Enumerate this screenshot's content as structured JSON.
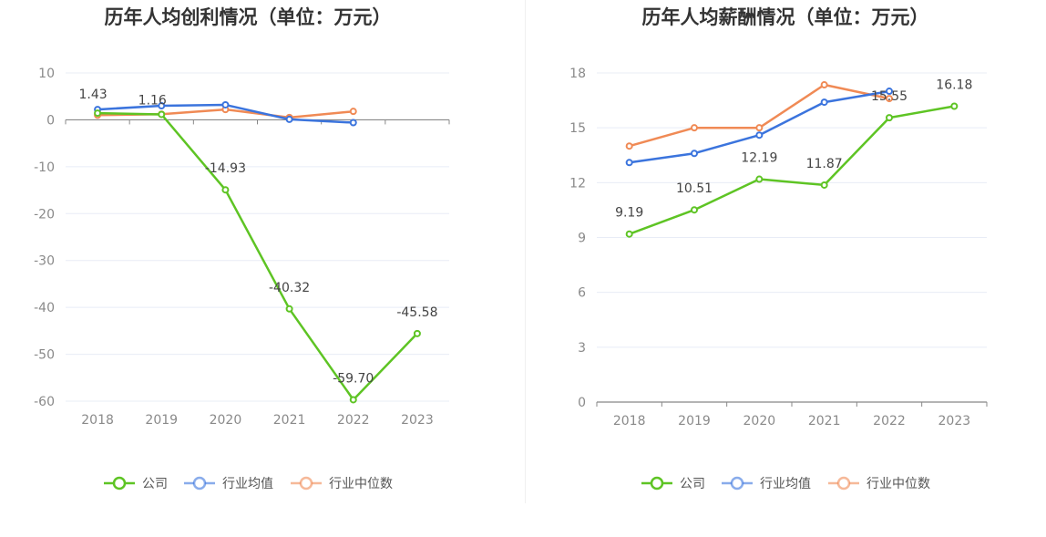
{
  "colors": {
    "company": "#5ec424",
    "industry_avg": "#3b74dd",
    "industry_median": "#f08a55",
    "grid": "#e8ecf6",
    "axis": "#888888"
  },
  "chart_data": [
    {
      "type": "line",
      "title": "历年人均创利情况（单位：万元）",
      "categories": [
        "2018",
        "2019",
        "2020",
        "2021",
        "2022",
        "2023"
      ],
      "ylim": [
        -60,
        10
      ],
      "yticks": [
        10,
        0,
        -10,
        -20,
        -30,
        -40,
        -50,
        -60
      ],
      "grid": true,
      "legend_position": "bottom",
      "series": [
        {
          "name": "公司",
          "key": "company",
          "values": [
            1.43,
            1.16,
            -14.93,
            -40.32,
            -59.7,
            -45.58
          ],
          "labels": [
            "1.43",
            "1.16",
            "-14.93",
            "-40.32",
            "-59.70",
            "-45.58"
          ]
        },
        {
          "name": "行业均值",
          "key": "industry_avg",
          "values": [
            2.2,
            3.0,
            3.2,
            0.1,
            -0.6,
            null
          ]
        },
        {
          "name": "行业中位数",
          "key": "industry_median",
          "values": [
            1.0,
            1.2,
            2.2,
            0.5,
            1.8,
            null
          ]
        }
      ]
    },
    {
      "type": "line",
      "title": "历年人均薪酬情况（单位：万元）",
      "categories": [
        "2018",
        "2019",
        "2020",
        "2021",
        "2022",
        "2023"
      ],
      "ylim": [
        0,
        18
      ],
      "yticks": [
        18,
        15,
        12,
        9,
        6,
        3,
        0
      ],
      "grid": true,
      "legend_position": "bottom",
      "series": [
        {
          "name": "公司",
          "key": "company",
          "values": [
            9.19,
            10.51,
            12.19,
            11.87,
            15.55,
            16.18
          ],
          "labels": [
            "9.19",
            "10.51",
            "12.19",
            "11.87",
            "15.55",
            "16.18"
          ]
        },
        {
          "name": "行业均值",
          "key": "industry_avg",
          "values": [
            13.1,
            13.6,
            14.6,
            16.4,
            17.0,
            null
          ]
        },
        {
          "name": "行业中位数",
          "key": "industry_median",
          "values": [
            14.0,
            15.0,
            15.0,
            17.35,
            16.6,
            null
          ]
        }
      ]
    }
  ]
}
